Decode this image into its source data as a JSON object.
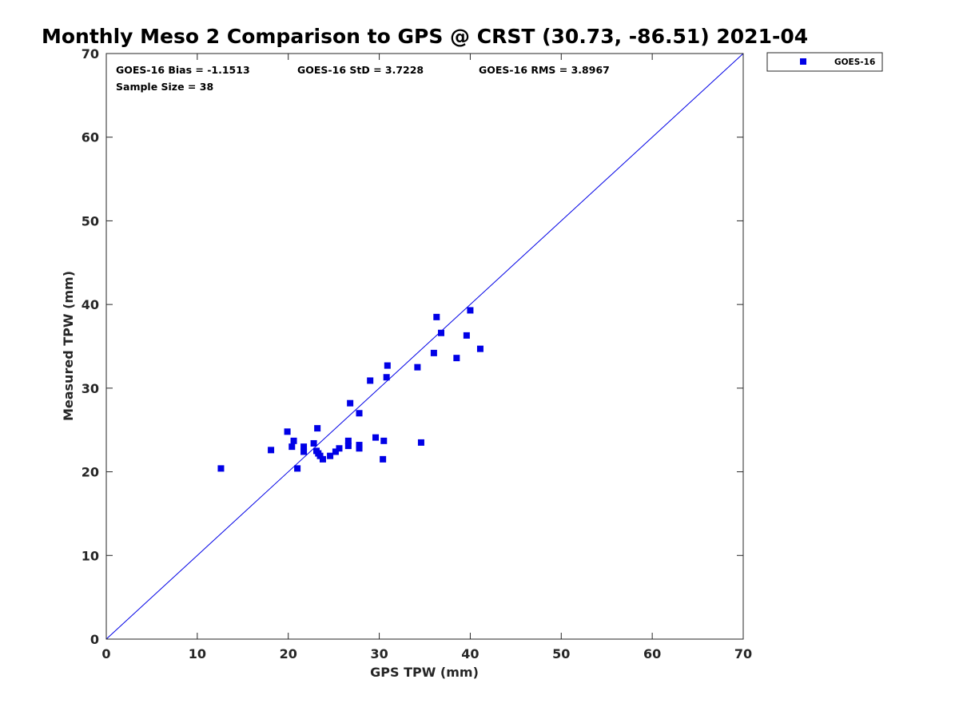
{
  "chart_data": {
    "type": "scatter",
    "title": "Monthly Meso 2 Comparison to GPS @ CRST (30.73, -86.51) 2021-04",
    "xlabel": "GPS TPW (mm)",
    "ylabel": "Measured TPW (mm)",
    "xlim": [
      0,
      70
    ],
    "ylim": [
      0,
      70
    ],
    "xticks": [
      0,
      10,
      20,
      30,
      40,
      50,
      60,
      70
    ],
    "yticks": [
      0,
      10,
      20,
      30,
      40,
      50,
      60,
      70
    ],
    "grid": false,
    "legend_position": "outside-top-right",
    "reference_line": [
      [
        0,
        0
      ],
      [
        70,
        70
      ]
    ],
    "stats": {
      "bias": "GOES-16 Bias = -1.1513",
      "std": "GOES-16 StD = 3.7228",
      "rms": "GOES-16 RMS = 3.8967",
      "sample": "Sample Size = 38"
    },
    "series": [
      {
        "name": "GOES-16",
        "color": "#0000e6",
        "marker": "square",
        "points": [
          [
            12.6,
            20.4
          ],
          [
            18.1,
            22.6
          ],
          [
            19.9,
            24.8
          ],
          [
            20.4,
            23.0
          ],
          [
            20.6,
            23.7
          ],
          [
            21.0,
            20.4
          ],
          [
            21.7,
            22.4
          ],
          [
            21.7,
            23.0
          ],
          [
            22.8,
            23.4
          ],
          [
            23.1,
            22.5
          ],
          [
            23.2,
            25.2
          ],
          [
            23.3,
            22.2
          ],
          [
            23.5,
            21.9
          ],
          [
            23.8,
            21.5
          ],
          [
            24.6,
            21.9
          ],
          [
            25.2,
            22.4
          ],
          [
            25.6,
            22.8
          ],
          [
            26.6,
            23.1
          ],
          [
            26.6,
            23.7
          ],
          [
            26.8,
            28.2
          ],
          [
            27.8,
            22.8
          ],
          [
            27.8,
            23.2
          ],
          [
            27.8,
            27.0
          ],
          [
            29.0,
            30.9
          ],
          [
            29.6,
            24.1
          ],
          [
            30.4,
            21.5
          ],
          [
            30.5,
            23.7
          ],
          [
            30.8,
            31.3
          ],
          [
            30.9,
            32.7
          ],
          [
            34.2,
            32.5
          ],
          [
            34.6,
            23.5
          ],
          [
            36.0,
            34.2
          ],
          [
            36.3,
            38.5
          ],
          [
            36.8,
            36.6
          ],
          [
            39.6,
            36.3
          ],
          [
            40.0,
            39.3
          ],
          [
            41.1,
            34.7
          ],
          [
            38.5,
            33.6
          ]
        ]
      }
    ]
  }
}
